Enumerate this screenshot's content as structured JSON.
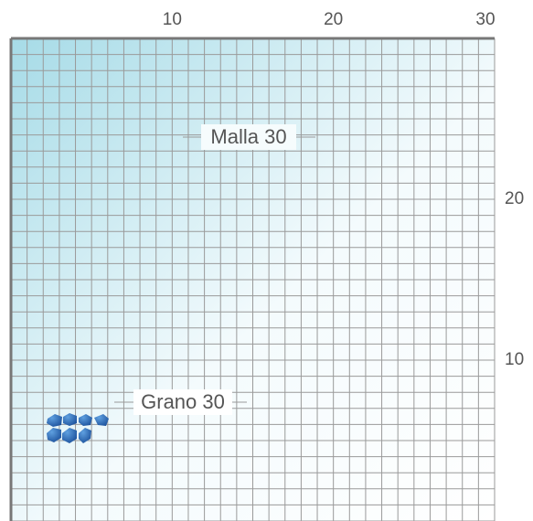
{
  "top_ticks": [
    10,
    20,
    30
  ],
  "right_ticks": [
    20,
    10
  ],
  "labels": {
    "mesh": "Malla 30",
    "grain": "Grano 30"
  }
}
